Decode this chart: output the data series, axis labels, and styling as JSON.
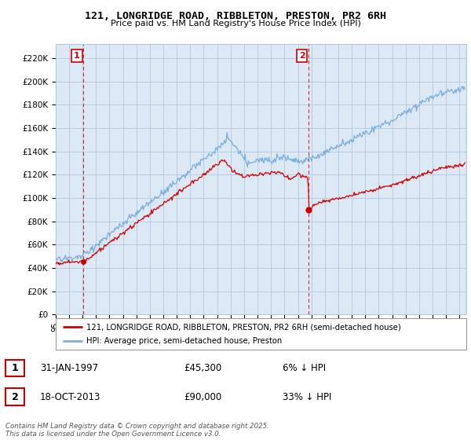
{
  "title_line1": "121, LONGRIDGE ROAD, RIBBLETON, PRESTON, PR2 6RH",
  "title_line2": "Price paid vs. HM Land Registry's House Price Index (HPI)",
  "ylabel_ticks": [
    "£0",
    "£20K",
    "£40K",
    "£60K",
    "£80K",
    "£100K",
    "£120K",
    "£140K",
    "£160K",
    "£180K",
    "£200K",
    "£220K"
  ],
  "ytick_values": [
    0,
    20000,
    40000,
    60000,
    80000,
    100000,
    120000,
    140000,
    160000,
    180000,
    200000,
    220000
  ],
  "ylim": [
    0,
    232000
  ],
  "xlim_start": 1995.0,
  "xlim_end": 2025.5,
  "marker1_date": 1997.08,
  "marker1_price": 45300,
  "marker2_date": 2013.8,
  "marker2_price": 90000,
  "legend_line1": "121, LONGRIDGE ROAD, RIBBLETON, PRESTON, PR2 6RH (semi-detached house)",
  "legend_line2": "HPI: Average price, semi-detached house, Preston",
  "note1_label": "1",
  "note1_date": "31-JAN-1997",
  "note1_price": "£45,300",
  "note1_hpi": "6% ↓ HPI",
  "note2_label": "2",
  "note2_date": "18-OCT-2013",
  "note2_price": "£90,000",
  "note2_hpi": "33% ↓ HPI",
  "footer": "Contains HM Land Registry data © Crown copyright and database right 2025.\nThis data is licensed under the Open Government Licence v3.0.",
  "color_red": "#cc0000",
  "color_blue": "#7aaddb",
  "background": "#ffffff",
  "chart_bg": "#dce9f5",
  "grid_color": "#b0c8e0"
}
